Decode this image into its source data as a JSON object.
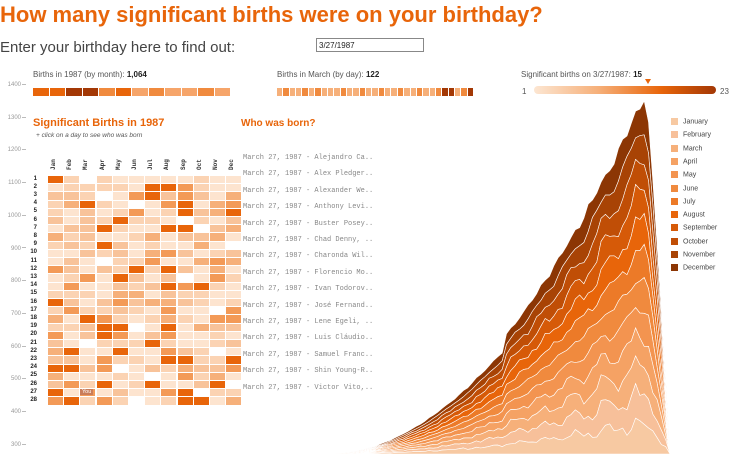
{
  "header": {
    "title": "How many significant births were on your birthday?",
    "prompt": "Enter your birthday here to find out:",
    "birthday_value": "3/27/1987"
  },
  "summary": {
    "month_label": "Births in 1987 (by month):",
    "month_total": "1,064",
    "day_label": "Births in March (by day):",
    "day_total": "122",
    "sig_label": "Significant births on 3/27/1987:",
    "sig_total": "15",
    "scale_min": "1",
    "scale_max": "23",
    "month_strip_colors": [
      "#e8650a",
      "#e8650a",
      "#a33805",
      "#a33805",
      "#f08a3e",
      "#e8650a",
      "#f6a56a",
      "#f08a3e",
      "#f6a56a",
      "#f6a56a",
      "#f08a3e",
      "#f6a56a"
    ],
    "day_strip_colors": [
      "#f6b07a",
      "#f08a3e",
      "#f6b07a",
      "#f6b07a",
      "#f08a3e",
      "#f6b07a",
      "#f08a3e",
      "#f6b07a",
      "#f6b07a",
      "#f6b07a",
      "#f08a3e",
      "#f6b07a",
      "#f6b07a",
      "#f08a3e",
      "#f6b07a",
      "#f6b07a",
      "#f08a3e",
      "#f6b07a",
      "#f6b07a",
      "#f08a3e",
      "#f6b07a",
      "#f6b07a",
      "#f08a3e",
      "#f6b07a",
      "#f6b07a",
      "#f08a3e",
      "#a33805",
      "#a33805",
      "#f6b07a",
      "#f08a3e",
      "#a33805"
    ]
  },
  "y_axis_ticks": [
    "1400",
    "1300",
    "1200",
    "1100",
    "1000",
    "900",
    "800",
    "700",
    "600",
    "500",
    "400",
    "300"
  ],
  "calendar": {
    "title": "Significant Births in 1987",
    "subtitle": "+ click on a day to see who was born",
    "months": [
      "Jan",
      "Feb",
      "Mar",
      "Apr",
      "May",
      "Jun",
      "Jul",
      "Aug",
      "Sep",
      "Oct",
      "Nov",
      "Dec"
    ],
    "days": [
      "1",
      "2",
      "3",
      "4",
      "5",
      "6",
      "7",
      "8",
      "9",
      "10",
      "11",
      "12",
      "13",
      "14",
      "15",
      "16",
      "17",
      "18",
      "19",
      "20",
      "21",
      "22",
      "23",
      "24",
      "25",
      "26",
      "27",
      "28"
    ],
    "you_label": "You"
  },
  "who": {
    "title": "Who was born?",
    "names": [
      "March 27, 1987 - Alejandro Ca..",
      "March 27, 1987 - Alex Pledger..",
      "March 27, 1987 - Alexander We..",
      "March 27, 1987 - Anthony Levi..",
      "March 27, 1987 - Buster Posey..",
      "March 27, 1987 - Chad Denny, ..",
      "March 27, 1987 - Charonda Wil..",
      "March 27, 1987 - Florencio Mo..",
      "March 27, 1987 - Ivan Todorov..",
      "March 27, 1987 - José Fernand..",
      "March 27, 1987 - Lene Egeli, ..",
      "March 27, 1987 - Luis Cláudio..",
      "March 27, 1987 - Samuel Franc..",
      "March 27, 1987 - Shin Young-R..",
      "March 27, 1987 - Victor Vito,.."
    ]
  },
  "legend": {
    "items": [
      {
        "label": "January",
        "color": "#f7c9a2"
      },
      {
        "label": "February",
        "color": "#f7c09a"
      },
      {
        "label": "March",
        "color": "#f6b07a"
      },
      {
        "label": "April",
        "color": "#f5a264"
      },
      {
        "label": "May",
        "color": "#f39450"
      },
      {
        "label": "June",
        "color": "#f08a3e"
      },
      {
        "label": "July",
        "color": "#ec7a28"
      },
      {
        "label": "August",
        "color": "#e8650a"
      },
      {
        "label": "September",
        "color": "#d65a08"
      },
      {
        "label": "October",
        "color": "#c04e06"
      },
      {
        "label": "November",
        "color": "#a84305"
      },
      {
        "label": "December",
        "color": "#8c3604"
      }
    ]
  }
}
